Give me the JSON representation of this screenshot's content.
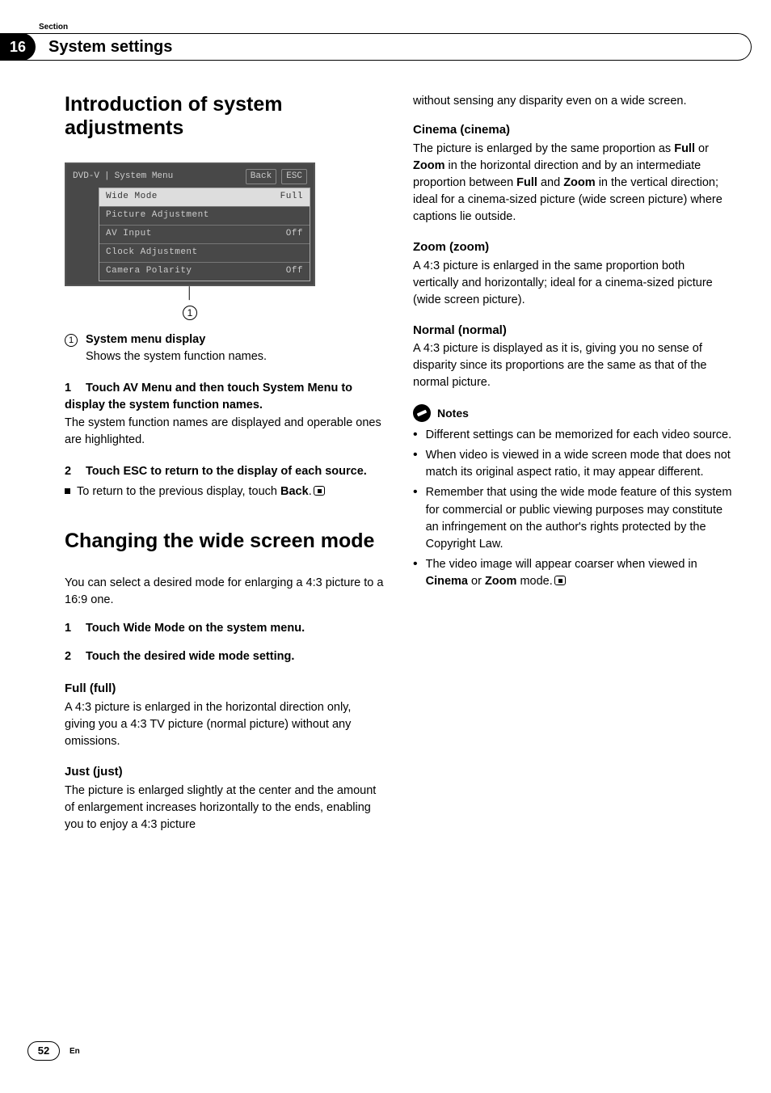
{
  "header": {
    "section_label": "Section",
    "section_number": "16",
    "section_title": "System settings"
  },
  "left": {
    "h1": "Introduction of system adjustments",
    "menu": {
      "source_label": "DVD-V",
      "title": "System Menu",
      "back": "Back",
      "esc": "ESC",
      "rows": [
        {
          "label": "Wide Mode",
          "value": "Full",
          "highlight": true
        },
        {
          "label": "Picture Adjustment",
          "value": "",
          "highlight": false
        },
        {
          "label": "AV Input",
          "value": "Off",
          "highlight": false
        },
        {
          "label": "Clock Adjustment",
          "value": "",
          "highlight": false
        },
        {
          "label": "Camera Polarity",
          "value": "Off",
          "highlight": false
        }
      ],
      "callout_num": "1"
    },
    "legend": {
      "num": "1",
      "label": "System menu display",
      "desc": "Shows the system function names."
    },
    "step1": {
      "num": "1",
      "head": "Touch AV Menu and then touch System Menu to display the system function names.",
      "body": "The system function names are displayed and operable ones are highlighted."
    },
    "step2": {
      "num": "2",
      "head": "Touch ESC to return to the display of each source.",
      "bullet": "To return to the previous display, touch",
      "back_word": "Back"
    },
    "h1b": "Changing the wide screen mode",
    "intro_b": "You can select a desired mode for enlarging a 4:3 picture to a 16:9 one.",
    "step_b1": {
      "num": "1",
      "head": "Touch Wide Mode on the system menu."
    },
    "step_b2": {
      "num": "2",
      "head": "Touch the desired wide mode setting."
    },
    "full": {
      "title": "Full (full)",
      "body": "A 4:3 picture is enlarged in the horizontal direction only, giving you a 4:3 TV picture (normal picture) without any omissions."
    },
    "just": {
      "title": "Just (just)",
      "body": "The picture is enlarged slightly at the center and the amount of enlargement increases horizontally to the ends, enabling you to enjoy a 4:3 picture"
    }
  },
  "right": {
    "just_cont": "without sensing any disparity even on a wide screen.",
    "cinema": {
      "title": "Cinema (cinema)",
      "p1a": "The picture is enlarged by the same proportion as ",
      "full": "Full",
      "p1b": " or ",
      "zoom": "Zoom",
      "p1c": " in the horizontal direction and by an intermediate proportion between ",
      "p1d": " and ",
      "p1e": " in the vertical direction; ideal for a cinema-sized picture (wide screen picture) where captions lie outside."
    },
    "zoom": {
      "title": "Zoom (zoom)",
      "body": "A 4:3 picture is enlarged in the same proportion both vertically and horizontally; ideal for a cinema-sized picture (wide screen picture)."
    },
    "normal": {
      "title": "Normal (normal)",
      "body": "A 4:3 picture is displayed as it is, giving you no sense of disparity since its proportions are the same as that of the normal picture."
    },
    "notes_label": "Notes",
    "notes": [
      "Different settings can be memorized for each video source.",
      "When video is viewed in a wide screen mode that does not match its original aspect ratio, it may appear different.",
      "Remember that using the wide mode feature of this system for commercial or public viewing purposes may constitute an infringement on the author's rights protected by the Copyright Law."
    ],
    "note_last_a": "The video image will appear coarser when viewed in ",
    "note_last_cinema": "Cinema",
    "note_last_b": " or ",
    "note_last_zoom": "Zoom",
    "note_last_c": " mode."
  },
  "footer": {
    "page": "52",
    "lang": "En"
  }
}
